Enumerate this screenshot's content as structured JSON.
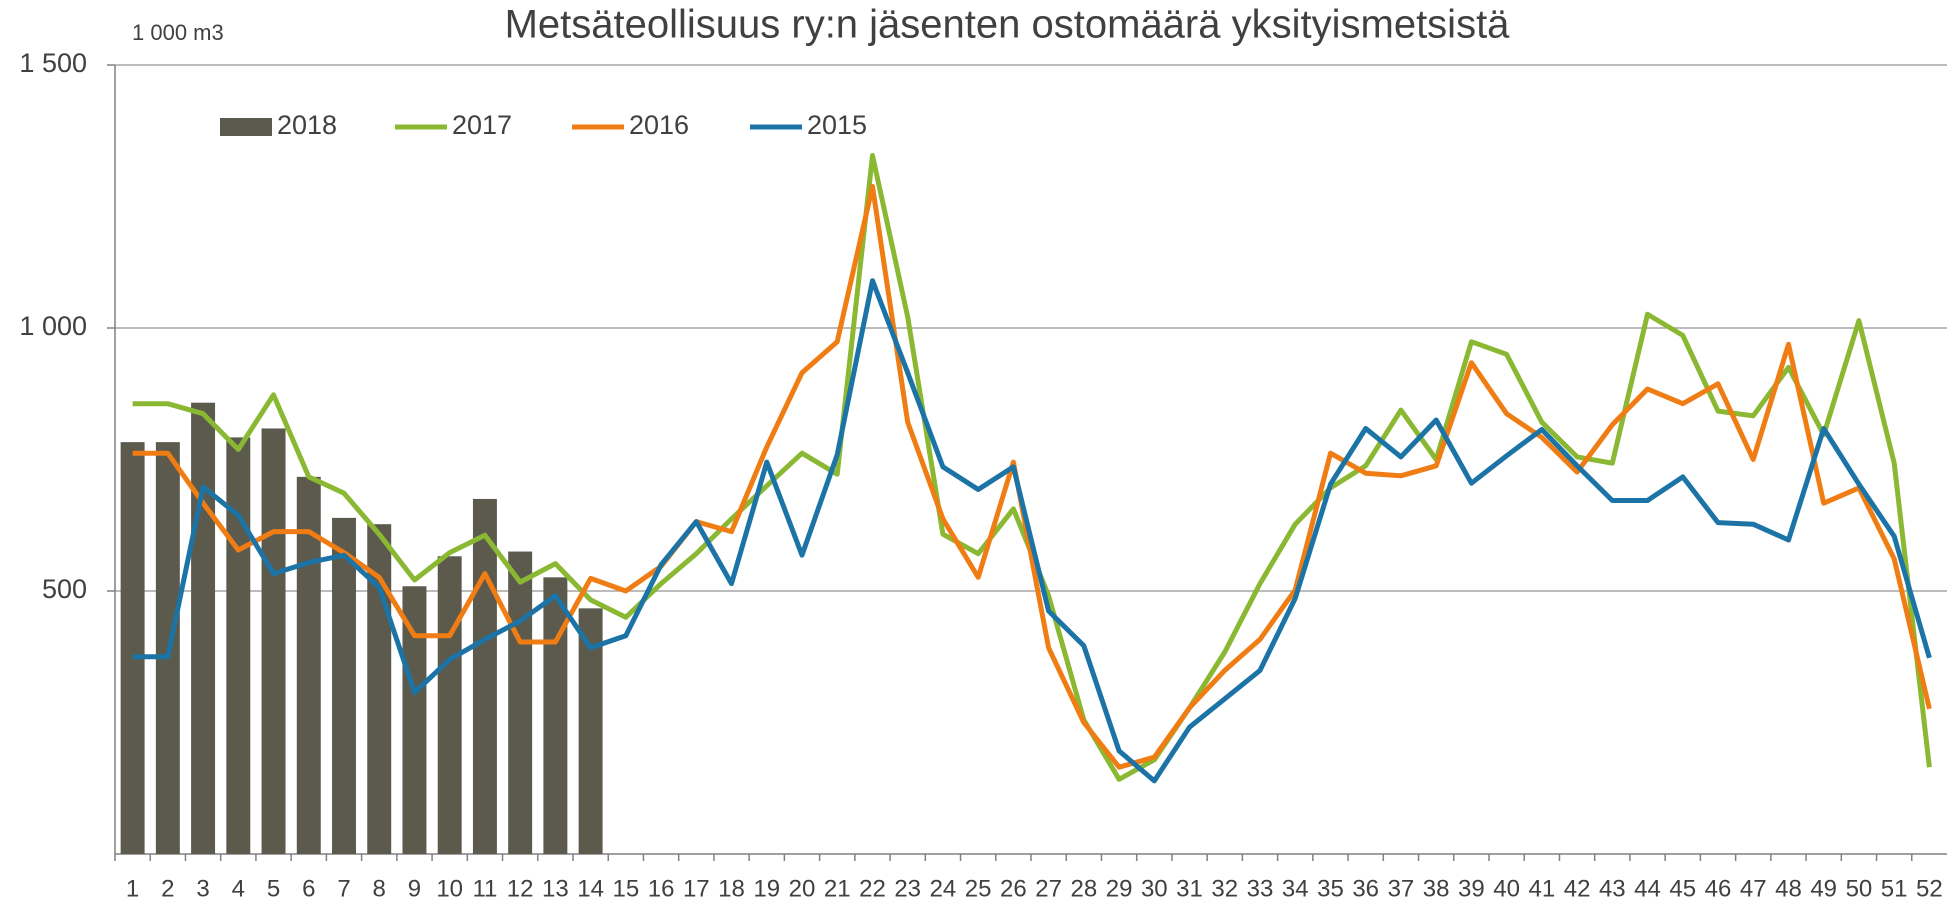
{
  "chart_data": {
    "type": "combo",
    "title": "Metsäteollisuus ry:n jäsenten ostomäärä yksityismetsistä",
    "y_axis_label": "1 000 m3",
    "categories": [
      "1",
      "2",
      "3",
      "4",
      "5",
      "6",
      "7",
      "8",
      "9",
      "10",
      "11",
      "12",
      "13",
      "14",
      "15",
      "16",
      "17",
      "18",
      "19",
      "20",
      "21",
      "22",
      "23",
      "24",
      "25",
      "26",
      "27",
      "28",
      "29",
      "30",
      "31",
      "32",
      "33",
      "34",
      "35",
      "36",
      "37",
      "38",
      "39",
      "40",
      "41",
      "42",
      "43",
      "44",
      "45",
      "46",
      "47",
      "48",
      "49",
      "50",
      "51",
      "52"
    ],
    "ylim": [
      0,
      1500
    ],
    "yticks": [
      {
        "value": 500,
        "label": "500"
      },
      {
        "value": 1000,
        "label": "1 000"
      },
      {
        "value": 1500,
        "label": "1 500"
      }
    ],
    "grid": true,
    "legend": "top-left",
    "series": [
      {
        "name": "2018",
        "type": "bar",
        "color": "#5b5a4c",
        "values": [
          783,
          783,
          858,
          792,
          809,
          717,
          639,
          627,
          509,
          566,
          675,
          575,
          526,
          467,
          null,
          null,
          null,
          null,
          null,
          null,
          null,
          null,
          null,
          null,
          null,
          null,
          null,
          null,
          null,
          null,
          null,
          null,
          null,
          null,
          null,
          null,
          null,
          null,
          null,
          null,
          null,
          null,
          null,
          null,
          null,
          null,
          null,
          null,
          null,
          null,
          null,
          null
        ]
      },
      {
        "name": "2017",
        "type": "line",
        "color": "#8ab833",
        "values": [
          856,
          856,
          837,
          769,
          873,
          717,
          686,
          608,
          521,
          573,
          606,
          517,
          552,
          483,
          450,
          514,
          571,
          637,
          700,
          762,
          722,
          1328,
          1021,
          608,
          571,
          656,
          491,
          255,
          142,
          179,
          278,
          384,
          514,
          627,
          696,
          738,
          844,
          750,
          974,
          950,
          821,
          755,
          743,
          1026,
          986,
          842,
          833,
          925,
          797,
          1014,
          743,
          165
        ]
      },
      {
        "name": "2016",
        "type": "line",
        "color": "#f07d14",
        "values": [
          762,
          762,
          667,
          578,
          613,
          613,
          573,
          526,
          415,
          415,
          533,
          403,
          403,
          524,
          500,
          547,
          632,
          613,
          774,
          915,
          974,
          1269,
          821,
          637,
          526,
          745,
          392,
          250,
          165,
          184,
          278,
          349,
          408,
          502,
          762,
          724,
          719,
          738,
          934,
          837,
          792,
          726,
          816,
          884,
          856,
          894,
          750,
          969,
          667,
          696,
          561,
          276
        ]
      },
      {
        "name": "2015",
        "type": "line",
        "color": "#1c73a6",
        "values": [
          375,
          375,
          698,
          644,
          533,
          554,
          568,
          507,
          307,
          370,
          408,
          443,
          491,
          392,
          415,
          550,
          632,
          514,
          745,
          568,
          759,
          1090,
          915,
          736,
          693,
          736,
          462,
          396,
          196,
          139,
          241,
          295,
          349,
          486,
          703,
          809,
          755,
          825,
          705,
          757,
          807,
          738,
          672,
          672,
          717,
          630,
          627,
          597,
          809,
          703,
          604,
          373
        ]
      }
    ]
  }
}
